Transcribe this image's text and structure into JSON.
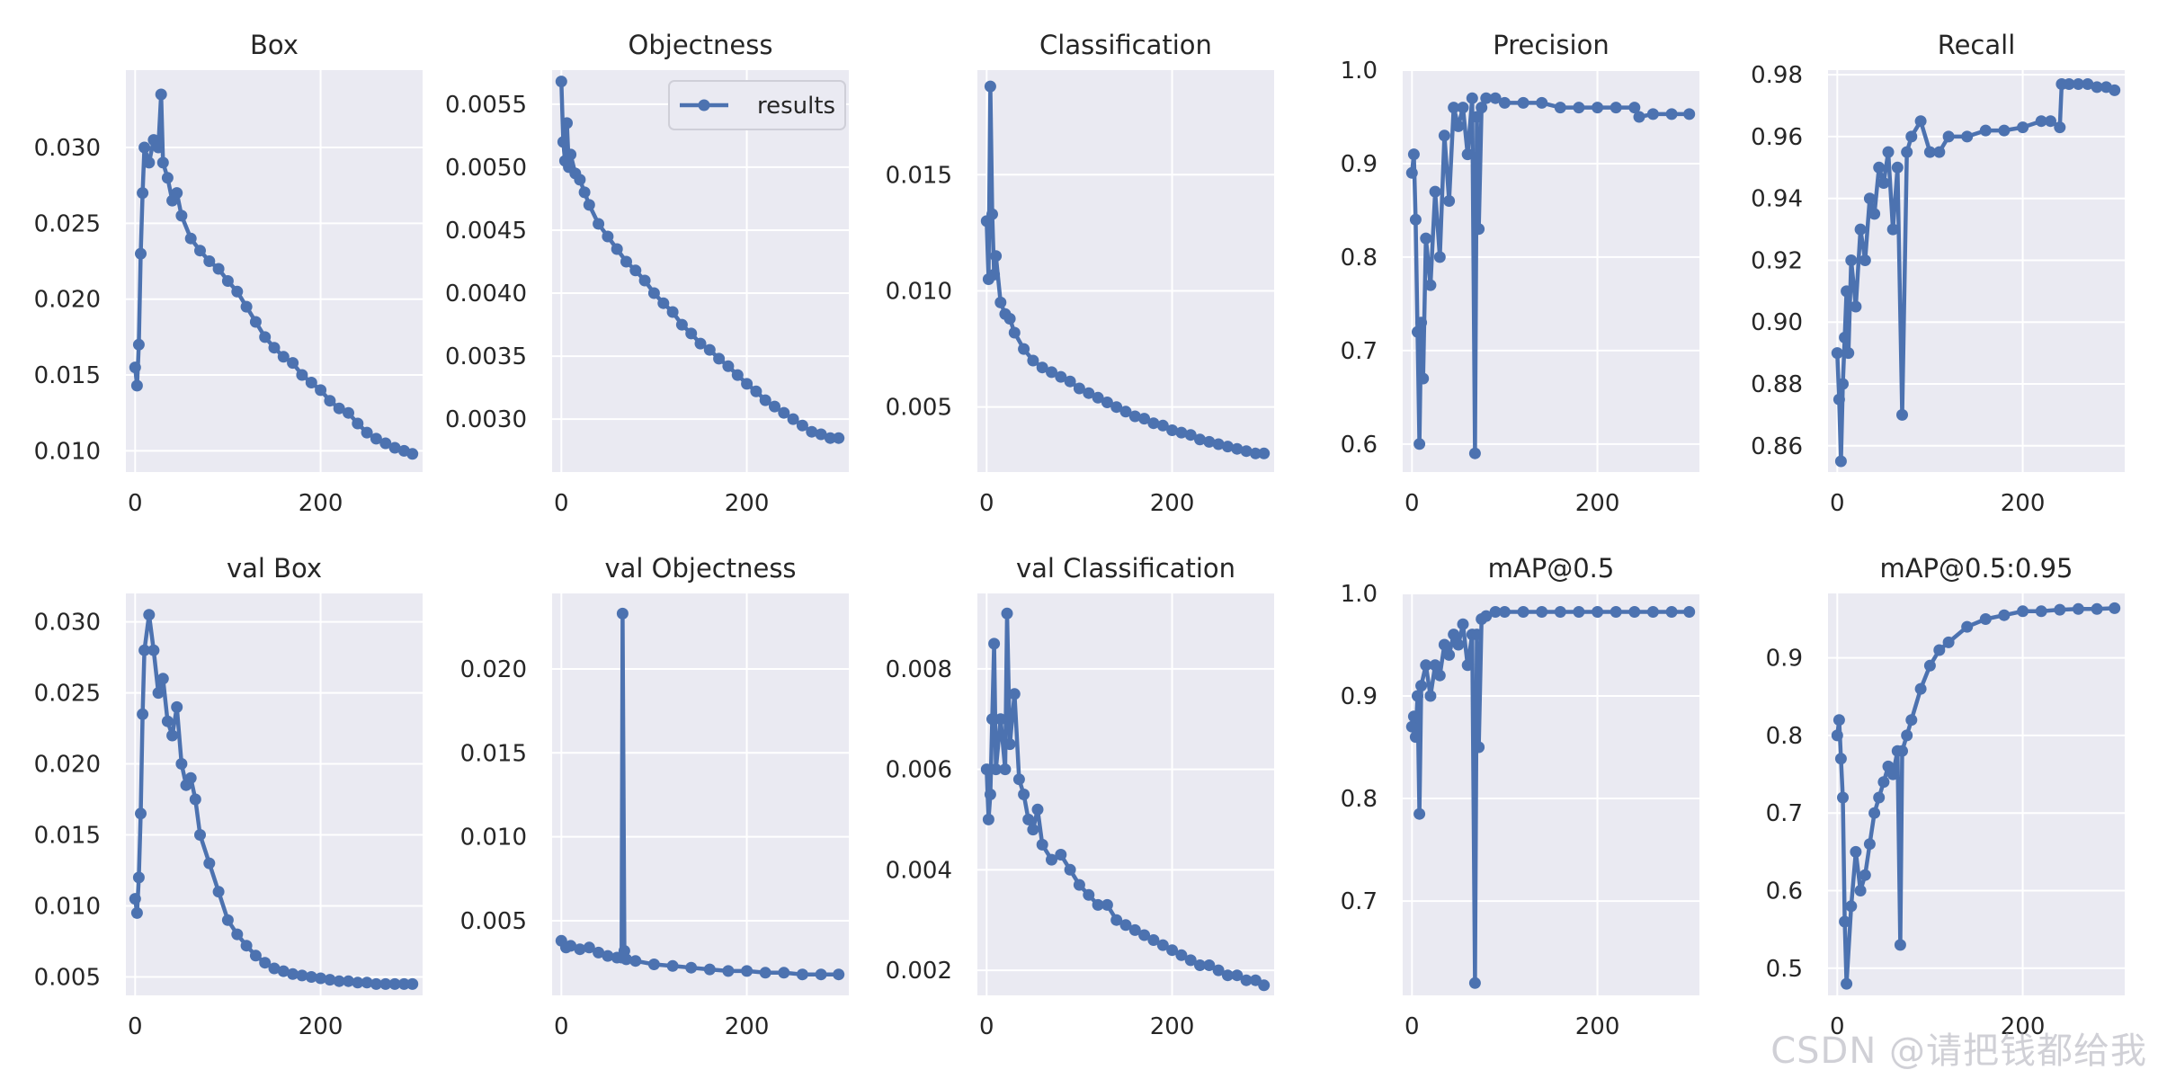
{
  "watermark": "CSDN @请把钱都给我",
  "colors": {
    "series": "#4c72b0",
    "panel_bg": "#eaeaf2",
    "grid": "#ffffff",
    "text": "#262626"
  },
  "chart_data": [
    {
      "type": "line",
      "title": "Box",
      "xlim": [
        -10,
        310
      ],
      "ylim": [
        0.0086,
        0.0351
      ],
      "xticks": [
        0,
        200
      ],
      "yticks": [
        0.01,
        0.015,
        0.02,
        0.025,
        0.03
      ],
      "ytick_labels": [
        "0.010",
        "0.015",
        "0.020",
        "0.025",
        "0.030"
      ],
      "grid": true,
      "legend": null,
      "series": [
        {
          "x": [
            0,
            2,
            4,
            6,
            8,
            10,
            15,
            20,
            25,
            28,
            30,
            35,
            40,
            45,
            50,
            60,
            70,
            80,
            90,
            100,
            110,
            120,
            130,
            140,
            150,
            160,
            170,
            180,
            190,
            200,
            210,
            220,
            230,
            240,
            250,
            260,
            270,
            280,
            290,
            299
          ],
          "y": [
            0.0155,
            0.0143,
            0.017,
            0.023,
            0.027,
            0.03,
            0.029,
            0.0305,
            0.03,
            0.0335,
            0.029,
            0.028,
            0.0265,
            0.027,
            0.0255,
            0.024,
            0.0232,
            0.0225,
            0.022,
            0.0212,
            0.0205,
            0.0195,
            0.0185,
            0.0175,
            0.0168,
            0.0162,
            0.0158,
            0.015,
            0.0145,
            0.014,
            0.0133,
            0.0128,
            0.0125,
            0.0118,
            0.0112,
            0.0108,
            0.0105,
            0.0102,
            0.01,
            0.0098
          ]
        }
      ]
    },
    {
      "type": "line",
      "title": "Objectness",
      "xlim": [
        -10,
        310
      ],
      "ylim": [
        0.00258,
        0.00577
      ],
      "xticks": [
        0,
        200
      ],
      "yticks": [
        0.003,
        0.0035,
        0.004,
        0.0045,
        0.005,
        0.0055
      ],
      "ytick_labels": [
        "0.0030",
        "0.0035",
        "0.0040",
        "0.0045",
        "0.0050",
        "0.0055"
      ],
      "grid": true,
      "legend": {
        "label": "results",
        "loc": "upper right"
      },
      "series": [
        {
          "x": [
            0,
            2,
            4,
            6,
            8,
            10,
            15,
            20,
            25,
            30,
            40,
            50,
            60,
            70,
            80,
            90,
            100,
            110,
            120,
            130,
            140,
            150,
            160,
            170,
            180,
            190,
            200,
            210,
            220,
            230,
            240,
            250,
            260,
            270,
            280,
            290,
            299
          ],
          "y": [
            0.00568,
            0.0052,
            0.00505,
            0.00535,
            0.005,
            0.0051,
            0.00495,
            0.0049,
            0.0048,
            0.0047,
            0.00455,
            0.00445,
            0.00435,
            0.00425,
            0.00418,
            0.0041,
            0.004,
            0.00392,
            0.00385,
            0.00375,
            0.00368,
            0.0036,
            0.00355,
            0.00348,
            0.00342,
            0.00335,
            0.00328,
            0.00322,
            0.00315,
            0.0031,
            0.00305,
            0.003,
            0.00295,
            0.0029,
            0.00288,
            0.00285,
            0.00285
          ]
        }
      ]
    },
    {
      "type": "line",
      "title": "Classification",
      "xlim": [
        -10,
        310
      ],
      "ylim": [
        0.0022,
        0.0195
      ],
      "xticks": [
        0,
        200
      ],
      "yticks": [
        0.005,
        0.01,
        0.015
      ],
      "ytick_labels": [
        "0.005",
        "0.010",
        "0.015"
      ],
      "grid": true,
      "legend": null,
      "series": [
        {
          "x": [
            0,
            2,
            4,
            6,
            8,
            10,
            15,
            20,
            25,
            30,
            40,
            50,
            60,
            70,
            80,
            90,
            100,
            110,
            120,
            130,
            140,
            150,
            160,
            170,
            180,
            190,
            200,
            210,
            220,
            230,
            240,
            250,
            260,
            270,
            280,
            290,
            299
          ],
          "y": [
            0.013,
            0.0105,
            0.0188,
            0.0133,
            0.0107,
            0.0115,
            0.0095,
            0.009,
            0.0088,
            0.0082,
            0.0075,
            0.007,
            0.0067,
            0.0065,
            0.0063,
            0.0061,
            0.0058,
            0.0056,
            0.0054,
            0.0052,
            0.005,
            0.0048,
            0.0046,
            0.0045,
            0.0043,
            0.0042,
            0.004,
            0.0039,
            0.0038,
            0.0036,
            0.0035,
            0.0034,
            0.0033,
            0.0032,
            0.0031,
            0.003,
            0.003
          ]
        }
      ]
    },
    {
      "type": "line",
      "title": "Precision",
      "xlim": [
        -10,
        310
      ],
      "ylim": [
        0.57,
        1.0
      ],
      "xticks": [
        0,
        200
      ],
      "yticks": [
        0.6,
        0.7,
        0.8,
        0.9,
        1.0
      ],
      "ytick_labels": [
        "0.6",
        "0.7",
        "0.8",
        "0.9",
        "1.0"
      ],
      "grid": true,
      "legend": null,
      "series": [
        {
          "x": [
            0,
            2,
            4,
            6,
            8,
            10,
            12,
            15,
            20,
            25,
            30,
            35,
            40,
            45,
            50,
            55,
            60,
            65,
            68,
            70,
            72,
            75,
            80,
            90,
            100,
            120,
            140,
            160,
            180,
            200,
            220,
            240,
            245,
            260,
            280,
            299
          ],
          "y": [
            0.89,
            0.91,
            0.84,
            0.72,
            0.6,
            0.73,
            0.67,
            0.82,
            0.77,
            0.87,
            0.8,
            0.93,
            0.86,
            0.96,
            0.94,
            0.96,
            0.91,
            0.97,
            0.59,
            0.95,
            0.83,
            0.96,
            0.97,
            0.97,
            0.965,
            0.965,
            0.965,
            0.96,
            0.96,
            0.96,
            0.96,
            0.96,
            0.95,
            0.953,
            0.953,
            0.953
          ]
        }
      ]
    },
    {
      "type": "line",
      "title": "Recall",
      "xlim": [
        -10,
        310
      ],
      "ylim": [
        0.8515,
        0.9815
      ],
      "xticks": [
        0,
        200
      ],
      "yticks": [
        0.86,
        0.88,
        0.9,
        0.92,
        0.94,
        0.96,
        0.98
      ],
      "ytick_labels": [
        "0.86",
        "0.88",
        "0.90",
        "0.92",
        "0.94",
        "0.96",
        "0.98"
      ],
      "grid": true,
      "legend": null,
      "series": [
        {
          "x": [
            0,
            2,
            4,
            6,
            8,
            10,
            12,
            15,
            20,
            25,
            30,
            35,
            40,
            45,
            50,
            55,
            60,
            65,
            70,
            75,
            80,
            90,
            100,
            110,
            120,
            140,
            160,
            180,
            200,
            220,
            230,
            240,
            242,
            250,
            260,
            270,
            280,
            290,
            299
          ],
          "y": [
            0.89,
            0.875,
            0.855,
            0.88,
            0.895,
            0.91,
            0.89,
            0.92,
            0.905,
            0.93,
            0.92,
            0.94,
            0.935,
            0.95,
            0.945,
            0.955,
            0.93,
            0.95,
            0.87,
            0.955,
            0.96,
            0.965,
            0.955,
            0.955,
            0.96,
            0.96,
            0.962,
            0.962,
            0.963,
            0.965,
            0.965,
            0.963,
            0.977,
            0.977,
            0.977,
            0.977,
            0.976,
            0.976,
            0.975
          ]
        }
      ]
    },
    {
      "type": "line",
      "title": "val Box",
      "xlim": [
        -10,
        310
      ],
      "ylim": [
        0.0037,
        0.032
      ],
      "xticks": [
        0,
        200
      ],
      "yticks": [
        0.005,
        0.01,
        0.015,
        0.02,
        0.025,
        0.03
      ],
      "ytick_labels": [
        "0.005",
        "0.010",
        "0.015",
        "0.020",
        "0.025",
        "0.030"
      ],
      "grid": true,
      "legend": null,
      "series": [
        {
          "x": [
            0,
            2,
            4,
            6,
            8,
            10,
            15,
            20,
            25,
            30,
            35,
            40,
            45,
            50,
            55,
            60,
            65,
            70,
            80,
            90,
            100,
            110,
            120,
            130,
            140,
            150,
            160,
            170,
            180,
            190,
            200,
            210,
            220,
            230,
            240,
            250,
            260,
            270,
            280,
            290,
            299
          ],
          "y": [
            0.0105,
            0.0095,
            0.012,
            0.0165,
            0.0235,
            0.028,
            0.0305,
            0.028,
            0.025,
            0.026,
            0.023,
            0.022,
            0.024,
            0.02,
            0.0185,
            0.019,
            0.0175,
            0.015,
            0.013,
            0.011,
            0.009,
            0.008,
            0.0072,
            0.0065,
            0.006,
            0.0056,
            0.0054,
            0.0052,
            0.0051,
            0.005,
            0.0049,
            0.0048,
            0.0047,
            0.0047,
            0.0046,
            0.0046,
            0.0045,
            0.0045,
            0.0045,
            0.0045,
            0.0045
          ]
        }
      ]
    },
    {
      "type": "line",
      "title": "val Objectness",
      "xlim": [
        -10,
        310
      ],
      "ylim": [
        0.00055,
        0.0245
      ],
      "xticks": [
        0,
        200
      ],
      "yticks": [
        0.005,
        0.01,
        0.015,
        0.02
      ],
      "ytick_labels": [
        "0.005",
        "0.010",
        "0.015",
        "0.020"
      ],
      "grid": true,
      "legend": null,
      "series": [
        {
          "x": [
            0,
            5,
            10,
            20,
            30,
            40,
            50,
            60,
            65,
            66,
            68,
            70,
            80,
            100,
            120,
            140,
            160,
            180,
            200,
            220,
            240,
            260,
            280,
            299
          ],
          "y": [
            0.0038,
            0.0034,
            0.0035,
            0.0033,
            0.0034,
            0.0031,
            0.0029,
            0.0028,
            0.0028,
            0.0233,
            0.0032,
            0.0027,
            0.0026,
            0.0024,
            0.0023,
            0.0022,
            0.0021,
            0.002,
            0.002,
            0.0019,
            0.0019,
            0.0018,
            0.0018,
            0.0018
          ]
        }
      ]
    },
    {
      "type": "line",
      "title": "val Classification",
      "xlim": [
        -10,
        310
      ],
      "ylim": [
        0.0015,
        0.0095
      ],
      "xticks": [
        0,
        200
      ],
      "yticks": [
        0.002,
        0.004,
        0.006,
        0.008
      ],
      "ytick_labels": [
        "0.002",
        "0.004",
        "0.006",
        "0.008"
      ],
      "grid": true,
      "legend": null,
      "series": [
        {
          "x": [
            0,
            2,
            4,
            6,
            8,
            10,
            15,
            20,
            22,
            25,
            30,
            35,
            40,
            45,
            50,
            55,
            60,
            70,
            80,
            90,
            100,
            110,
            120,
            130,
            140,
            150,
            160,
            170,
            180,
            190,
            200,
            210,
            220,
            230,
            240,
            250,
            260,
            270,
            280,
            290,
            299
          ],
          "y": [
            0.006,
            0.005,
            0.0055,
            0.007,
            0.0085,
            0.006,
            0.007,
            0.006,
            0.0091,
            0.0065,
            0.0075,
            0.0058,
            0.0055,
            0.005,
            0.0048,
            0.0052,
            0.0045,
            0.0042,
            0.0043,
            0.004,
            0.0037,
            0.0035,
            0.0033,
            0.0033,
            0.003,
            0.0029,
            0.0028,
            0.0027,
            0.0026,
            0.0025,
            0.0024,
            0.0023,
            0.0022,
            0.0021,
            0.0021,
            0.002,
            0.0019,
            0.0019,
            0.0018,
            0.0018,
            0.0017
          ]
        }
      ]
    },
    {
      "type": "line",
      "title": "mAP@0.5",
      "xlim": [
        -10,
        310
      ],
      "ylim": [
        0.608,
        1.0
      ],
      "xticks": [
        0,
        200
      ],
      "yticks": [
        0.7,
        0.8,
        0.9,
        1.0
      ],
      "ytick_labels": [
        "0.7",
        "0.8",
        "0.9",
        "1.0"
      ],
      "grid": true,
      "legend": null,
      "series": [
        {
          "x": [
            0,
            2,
            4,
            6,
            8,
            10,
            15,
            20,
            25,
            30,
            35,
            40,
            45,
            50,
            55,
            60,
            65,
            68,
            70,
            72,
            75,
            80,
            90,
            100,
            120,
            140,
            160,
            180,
            200,
            220,
            240,
            260,
            280,
            299
          ],
          "y": [
            0.87,
            0.88,
            0.86,
            0.9,
            0.785,
            0.91,
            0.93,
            0.9,
            0.93,
            0.92,
            0.95,
            0.94,
            0.96,
            0.95,
            0.97,
            0.93,
            0.96,
            0.62,
            0.96,
            0.85,
            0.975,
            0.978,
            0.982,
            0.982,
            0.982,
            0.982,
            0.982,
            0.982,
            0.982,
            0.982,
            0.982,
            0.982,
            0.982,
            0.982
          ]
        }
      ]
    },
    {
      "type": "line",
      "title": "mAP@0.5:0.95",
      "xlim": [
        -10,
        310
      ],
      "ylim": [
        0.465,
        0.983
      ],
      "xticks": [
        0,
        200
      ],
      "yticks": [
        0.5,
        0.6,
        0.7,
        0.8,
        0.9
      ],
      "ytick_labels": [
        "0.5",
        "0.6",
        "0.7",
        "0.8",
        "0.9"
      ],
      "grid": true,
      "legend": null,
      "series": [
        {
          "x": [
            0,
            2,
            4,
            6,
            8,
            10,
            15,
            20,
            25,
            30,
            35,
            40,
            45,
            50,
            55,
            60,
            65,
            68,
            70,
            75,
            80,
            90,
            100,
            110,
            120,
            140,
            160,
            180,
            200,
            220,
            240,
            260,
            280,
            299
          ],
          "y": [
            0.8,
            0.82,
            0.77,
            0.72,
            0.56,
            0.48,
            0.58,
            0.65,
            0.6,
            0.62,
            0.66,
            0.7,
            0.72,
            0.74,
            0.76,
            0.75,
            0.78,
            0.53,
            0.78,
            0.8,
            0.82,
            0.86,
            0.89,
            0.91,
            0.92,
            0.94,
            0.95,
            0.955,
            0.96,
            0.96,
            0.962,
            0.963,
            0.963,
            0.964
          ]
        }
      ]
    }
  ]
}
